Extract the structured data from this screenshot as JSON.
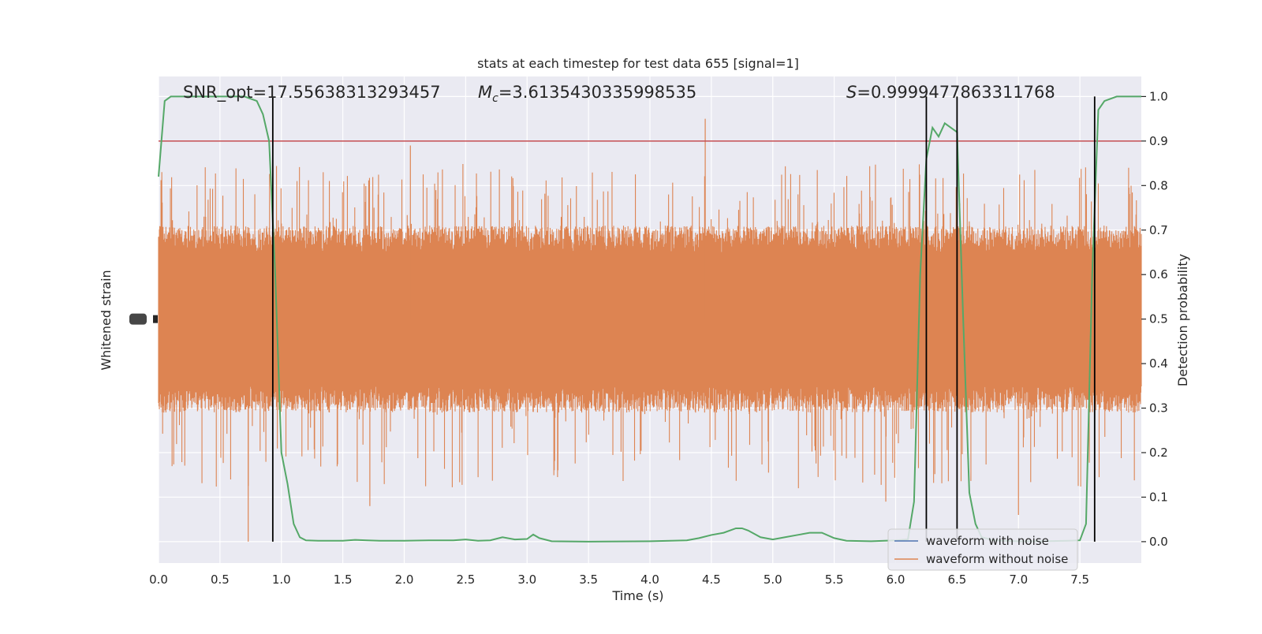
{
  "chart_data": {
    "type": "line",
    "title": "stats at each timestep for test data 655 [signal=1]",
    "xlabel": "Time (s)",
    "ylabel_left": "Whitened strain",
    "ylabel_right": "Detection probability",
    "xlim": [
      0.0,
      8.0
    ],
    "ylim_right": [
      -0.048,
      1.045
    ],
    "x_ticks": [
      0.0,
      0.5,
      1.0,
      1.5,
      2.0,
      2.5,
      3.0,
      3.5,
      4.0,
      4.5,
      5.0,
      5.5,
      6.0,
      6.5,
      7.0,
      7.5
    ],
    "x_tick_labels": [
      "0.0",
      "0.5",
      "1.0",
      "1.5",
      "2.0",
      "2.5",
      "3.0",
      "3.5",
      "4.0",
      "4.5",
      "5.0",
      "5.5",
      "6.0",
      "6.5",
      "7.0",
      "7.5"
    ],
    "y_right_ticks": [
      0.0,
      0.1,
      0.2,
      0.3,
      0.4,
      0.5,
      0.6,
      0.7,
      0.8,
      0.9,
      1.0
    ],
    "y_right_tick_labels": [
      "0.0",
      "0.1",
      "0.2",
      "0.3",
      "0.4",
      "0.5",
      "0.6",
      "0.7",
      "0.8",
      "0.9",
      "1.0"
    ],
    "grid": true,
    "legend": {
      "placement": "lower-right",
      "entries": [
        {
          "label": "waveform with noise",
          "color": "#4c72b0"
        },
        {
          "label": "waveform without noise",
          "color": "#dd8452"
        }
      ]
    },
    "annotations": {
      "snr": "SNR_opt=17.55638313293457",
      "mc_symbol": "M",
      "mc_sub": "c",
      "mc_value": "=3.6135430335998535",
      "s_symbol": "S",
      "s_value": "=0.9999477863311768"
    },
    "threshold": {
      "value": 0.9,
      "color": "#c44e52"
    },
    "vertical_markers": [
      0.93,
      6.25,
      6.5,
      7.62
    ],
    "colors": {
      "noise": "#dd8452",
      "probability": "#55a868",
      "marker": "#000000",
      "background": "#eaeaf2",
      "grid": "#ffffff"
    },
    "series": [
      {
        "name": "waveform without noise",
        "color": "#dd8452",
        "band_center": 0.5,
        "band_typical_range": [
          0.3,
          0.7
        ],
        "band_extreme_range": [
          0.0,
          0.95
        ]
      },
      {
        "name": "",
        "color": "#55a868",
        "x": [
          0.0,
          0.05,
          0.1,
          0.2,
          0.3,
          0.4,
          0.5,
          0.6,
          0.7,
          0.8,
          0.85,
          0.9,
          0.95,
          1.0,
          1.05,
          1.1,
          1.15,
          1.2,
          1.3,
          1.5,
          1.6,
          1.7,
          1.8,
          2.0,
          2.2,
          2.4,
          2.5,
          2.6,
          2.7,
          2.8,
          2.9,
          3.0,
          3.05,
          3.1,
          3.2,
          3.5,
          4.0,
          4.3,
          4.4,
          4.5,
          4.6,
          4.7,
          4.75,
          4.8,
          4.9,
          5.0,
          5.1,
          5.2,
          5.3,
          5.4,
          5.5,
          5.6,
          5.8,
          6.0,
          6.1,
          6.15,
          6.2,
          6.25,
          6.3,
          6.35,
          6.4,
          6.45,
          6.5,
          6.55,
          6.6,
          6.65,
          6.7,
          6.8,
          7.0,
          7.2,
          7.4,
          7.5,
          7.55,
          7.6,
          7.65,
          7.7,
          7.8,
          7.9,
          8.0
        ],
        "values": [
          0.82,
          0.99,
          1.0,
          1.0,
          1.0,
          1.0,
          1.0,
          1.0,
          1.0,
          0.99,
          0.96,
          0.9,
          0.6,
          0.2,
          0.13,
          0.04,
          0.01,
          0.003,
          0.002,
          0.002,
          0.004,
          0.003,
          0.002,
          0.002,
          0.003,
          0.003,
          0.005,
          0.002,
          0.003,
          0.01,
          0.005,
          0.006,
          0.016,
          0.008,
          0.001,
          0.0,
          0.001,
          0.003,
          0.008,
          0.015,
          0.02,
          0.03,
          0.03,
          0.025,
          0.01,
          0.005,
          0.01,
          0.015,
          0.02,
          0.02,
          0.008,
          0.002,
          0.001,
          0.003,
          0.005,
          0.09,
          0.6,
          0.86,
          0.93,
          0.91,
          0.94,
          0.93,
          0.92,
          0.5,
          0.11,
          0.04,
          0.01,
          0.003,
          0.001,
          0.001,
          0.002,
          0.003,
          0.04,
          0.6,
          0.97,
          0.99,
          1.0,
          1.0,
          1.0
        ]
      }
    ]
  }
}
